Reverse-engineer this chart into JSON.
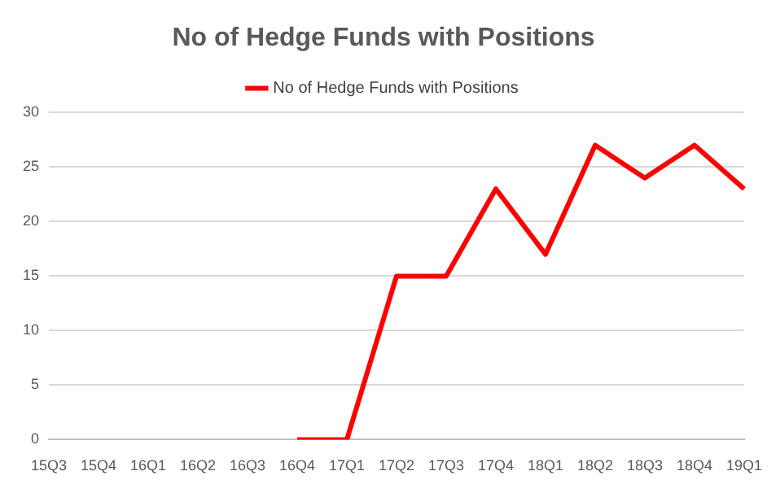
{
  "chart_data": {
    "type": "line",
    "title": "No of Hedge Funds with Positions",
    "categories": [
      "15Q3",
      "15Q4",
      "16Q1",
      "16Q2",
      "16Q3",
      "16Q4",
      "17Q1",
      "17Q2",
      "17Q3",
      "17Q4",
      "18Q1",
      "18Q2",
      "18Q3",
      "18Q4",
      "19Q1"
    ],
    "series": [
      {
        "name": "No of Hedge Funds with Positions",
        "color": "#ff0000",
        "values": [
          null,
          null,
          null,
          null,
          null,
          0,
          0,
          15,
          15,
          23,
          17,
          27,
          24,
          27,
          23
        ]
      }
    ],
    "ylim": [
      0,
      30
    ],
    "yticks": [
      0,
      5,
      10,
      15,
      20,
      25,
      30
    ],
    "grid": "y",
    "legend": "top",
    "marker": "none",
    "line_style": "solid"
  }
}
